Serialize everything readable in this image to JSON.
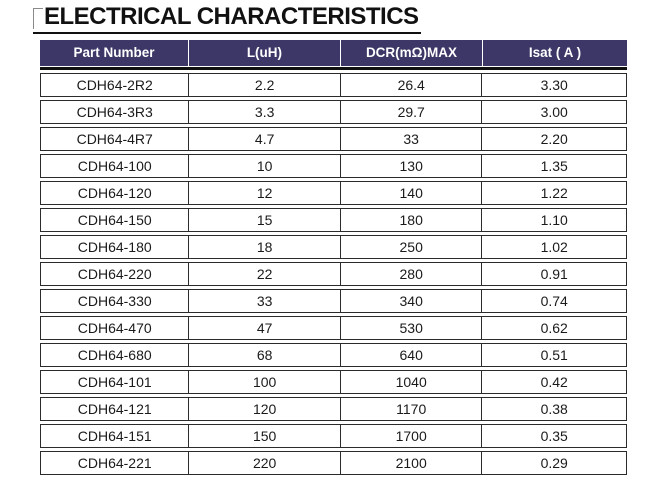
{
  "title": "ELECTRICAL CHARACTERISTICS",
  "icons": {
    "corner_bracket": "thin gray top-left corner bracket before title"
  },
  "colors": {
    "header_bg": "#3c3766",
    "header_text": "#ffffff",
    "grid": "#2b2b2b",
    "title_text": "#111111",
    "title_underline": "#111111"
  },
  "table": {
    "columns": [
      "Part Number",
      "L(uH)",
      "DCR(mΩ)MAX",
      "Isat ( A )"
    ],
    "rows": [
      [
        "CDH64-2R2",
        "2.2",
        "26.4",
        "3.30"
      ],
      [
        "CDH64-3R3",
        "3.3",
        "29.7",
        "3.00"
      ],
      [
        "CDH64-4R7",
        "4.7",
        "33",
        "2.20"
      ],
      [
        "CDH64-100",
        "10",
        "130",
        "1.35"
      ],
      [
        "CDH64-120",
        "12",
        "140",
        "1.22"
      ],
      [
        "CDH64-150",
        "15",
        "180",
        "1.10"
      ],
      [
        "CDH64-180",
        "18",
        "250",
        "1.02"
      ],
      [
        "CDH64-220",
        "22",
        "280",
        "0.91"
      ],
      [
        "CDH64-330",
        "33",
        "340",
        "0.74"
      ],
      [
        "CDH64-470",
        "47",
        "530",
        "0.62"
      ],
      [
        "CDH64-680",
        "68",
        "640",
        "0.51"
      ],
      [
        "CDH64-101",
        "100",
        "1040",
        "0.42"
      ],
      [
        "CDH64-121",
        "120",
        "1170",
        "0.38"
      ],
      [
        "CDH64-151",
        "150",
        "1700",
        "0.35"
      ],
      [
        "CDH64-221",
        "220",
        "2100",
        "0.29"
      ]
    ]
  }
}
